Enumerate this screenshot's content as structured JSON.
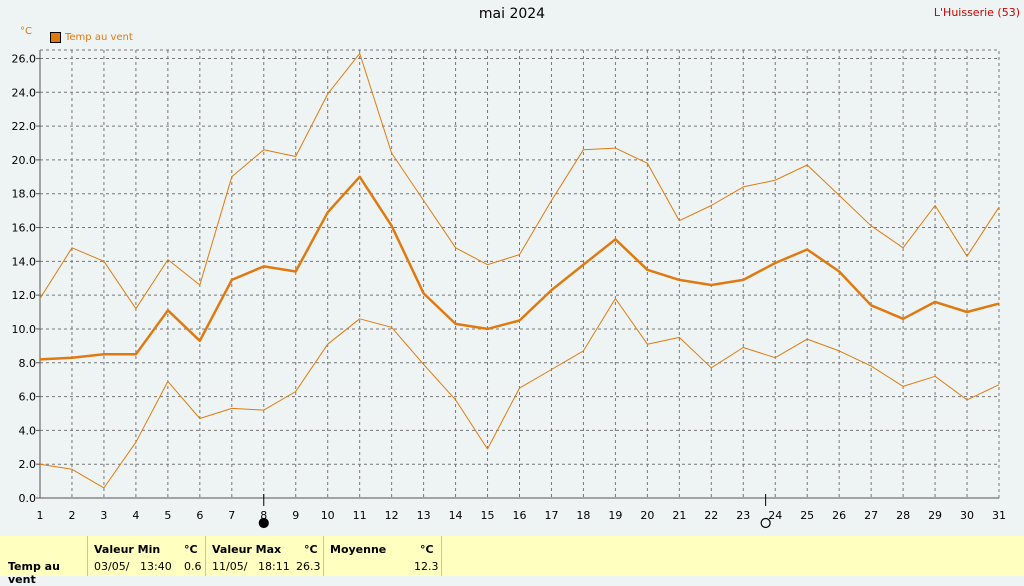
{
  "title": "mai 2024",
  "station": "L'Huisserie (53)",
  "unit": "°C",
  "legend": [
    {
      "name": "Temp au vent",
      "color": "#e07a10"
    }
  ],
  "chart_data": {
    "type": "line",
    "x": [
      1,
      2,
      3,
      4,
      5,
      6,
      7,
      8,
      9,
      10,
      11,
      12,
      13,
      14,
      15,
      16,
      17,
      18,
      19,
      20,
      21,
      22,
      23,
      24,
      25,
      26,
      27,
      28,
      29,
      30,
      31
    ],
    "ylim": [
      0,
      26.5
    ],
    "yticks": [
      "0.0",
      "2.0",
      "4.0",
      "6.0",
      "8.0",
      "10.0",
      "12.0",
      "14.0",
      "16.0",
      "18.0",
      "20.0",
      "22.0",
      "24.0",
      "26.0"
    ],
    "grid": true,
    "series": [
      {
        "name": "Temp au vent",
        "role": "max",
        "values": [
          11.8,
          14.8,
          14.0,
          11.2,
          14.1,
          12.6,
          19.0,
          20.6,
          20.2,
          23.9,
          26.3,
          20.4,
          17.6,
          14.8,
          13.8,
          14.4,
          17.6,
          20.6,
          20.7,
          19.8,
          16.4,
          17.3,
          18.4,
          18.8,
          19.7,
          17.9,
          16.1,
          14.8,
          17.3,
          14.3,
          17.2
        ]
      },
      {
        "name": "Temp au vent",
        "role": "mean",
        "values": [
          8.2,
          8.3,
          8.5,
          8.5,
          11.1,
          9.3,
          12.9,
          13.7,
          13.4,
          16.9,
          19.0,
          16.1,
          12.1,
          10.3,
          10.0,
          10.5,
          12.3,
          13.8,
          15.3,
          13.5,
          12.9,
          12.6,
          12.9,
          13.9,
          14.7,
          13.4,
          11.4,
          10.6,
          11.6,
          11.0,
          11.5
        ]
      },
      {
        "name": "Temp au vent",
        "role": "min",
        "values": [
          2.0,
          1.7,
          0.6,
          3.3,
          6.9,
          4.7,
          5.3,
          5.2,
          6.3,
          9.1,
          10.6,
          10.1,
          7.9,
          5.8,
          2.9,
          6.5,
          7.6,
          8.7,
          11.8,
          9.1,
          9.5,
          7.7,
          8.9,
          8.3,
          9.4,
          8.7,
          7.8,
          6.6,
          7.2,
          5.8,
          6.7
        ]
      }
    ],
    "moon_phases": [
      {
        "day": 8,
        "phase": "new"
      },
      {
        "day": 23.7,
        "phase": "full"
      }
    ]
  },
  "summary": {
    "row_label": "Temp au vent",
    "min": {
      "header": "Valeur Min",
      "unit": "°C",
      "date": "03/05/",
      "time": "13:40",
      "value": "0.6"
    },
    "max": {
      "header": "Valeur Max",
      "unit": "°C",
      "date": "11/05/",
      "time": "18:11",
      "value": "26.3"
    },
    "mean": {
      "header": "Moyenne",
      "unit": "°C",
      "value": "12.3"
    }
  }
}
